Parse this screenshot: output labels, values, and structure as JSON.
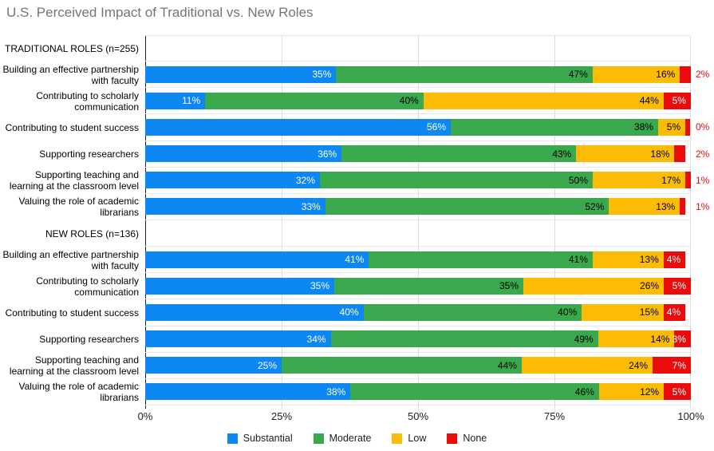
{
  "chart": {
    "title": "U.S. Perceived Impact of Traditional vs. New Roles"
  },
  "x_axis": {
    "ticks": [
      "0%",
      "25%",
      "50%",
      "75%",
      "100%"
    ]
  },
  "chart_data": {
    "type": "bar",
    "stacked": true,
    "orientation": "horizontal",
    "unit": "%",
    "xlim": [
      0,
      100
    ],
    "grid": "vertical-at-25-percent-steps",
    "legend_position": "bottom-center",
    "title": "U.S. Perceived Impact of Traditional vs. New Roles",
    "series": [
      {
        "name": "Substantial",
        "color": "#0d87f1",
        "label_color": "#ffffff"
      },
      {
        "name": "Moderate",
        "color": "#3aa84d",
        "label_color": "#000000"
      },
      {
        "name": "Low",
        "color": "#fcbc05",
        "label_color": "#000000"
      },
      {
        "name": "None",
        "color": "#ea0c0c",
        "label_color": "#ffffff"
      }
    ],
    "groups": [
      {
        "label": "TRADITIONAL ROLES (n=255)",
        "rows": [
          {
            "category": "Building an effective partnership with faculty",
            "values": [
              35,
              47,
              16,
              2
            ]
          },
          {
            "category": "Contributing to scholarly communication",
            "values": [
              11,
              40,
              44,
              5
            ]
          },
          {
            "category": "Contributing to student success",
            "values": [
              56,
              38,
              5,
              0
            ]
          },
          {
            "category": "Supporting researchers",
            "values": [
              36,
              43,
              18,
              2
            ]
          },
          {
            "category": "Supporting teaching and learning at the classroom level",
            "values": [
              32,
              50,
              17,
              1
            ]
          },
          {
            "category": "Valuing the role of academic librarians",
            "values": [
              33,
              52,
              13,
              1
            ]
          }
        ]
      },
      {
        "label": "NEW ROLES (n=136)",
        "rows": [
          {
            "category": "Building an effective partnership with faculty",
            "values": [
              41,
              41,
              13,
              4
            ]
          },
          {
            "category": "Contributing to scholarly communication",
            "values": [
              35,
              35,
              26,
              5
            ]
          },
          {
            "category": "Contributing to student success",
            "values": [
              40,
              40,
              15,
              4
            ]
          },
          {
            "category": "Supporting researchers",
            "values": [
              34,
              49,
              14,
              3
            ]
          },
          {
            "category": "Supporting teaching and learning at the classroom level",
            "values": [
              25,
              44,
              24,
              7
            ]
          },
          {
            "category": "Valuing the role of academic librarians",
            "values": [
              38,
              46,
              12,
              5
            ]
          }
        ]
      }
    ]
  }
}
